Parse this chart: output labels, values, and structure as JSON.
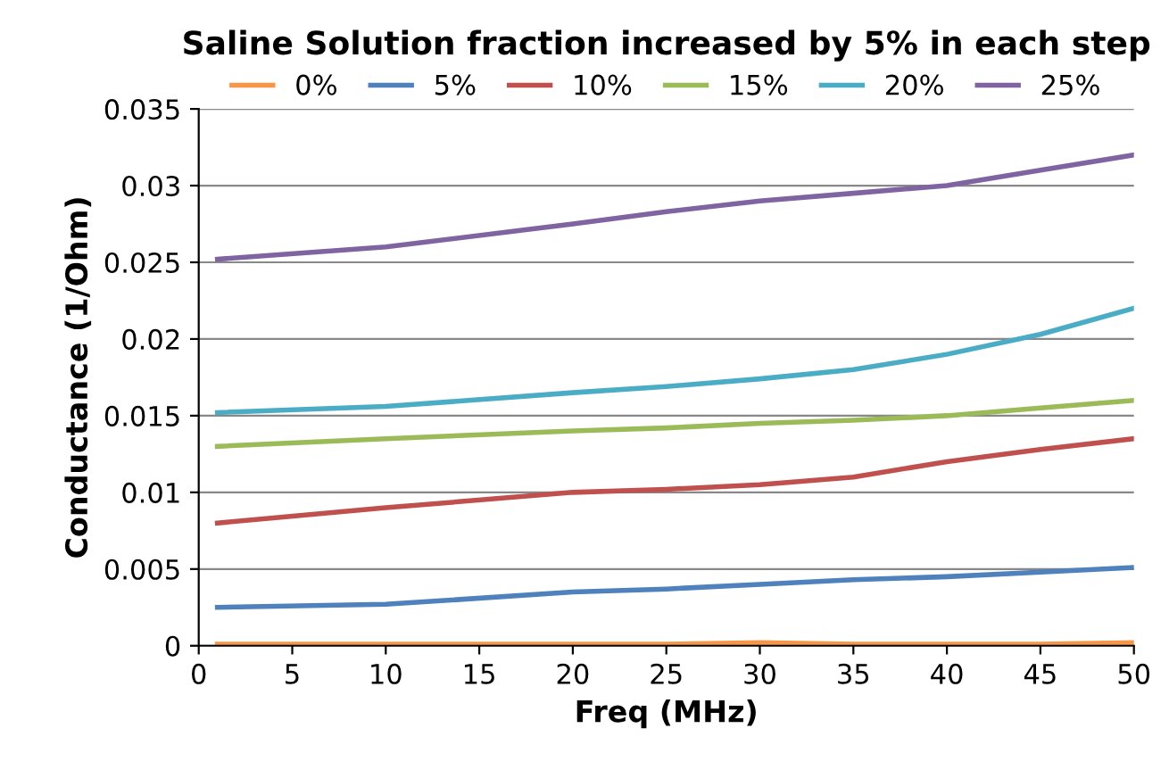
{
  "chart_data": {
    "type": "line",
    "title": "Saline Solution fraction increased by 5% in each step",
    "xlabel": "Freq (MHz)",
    "ylabel": "Conductance (1/Ohm)",
    "xlim": [
      0,
      50
    ],
    "xticks": [
      0,
      5,
      10,
      15,
      20,
      25,
      30,
      35,
      40,
      45,
      50
    ],
    "ylim": [
      0,
      0.035
    ],
    "yticks": [
      0,
      0.005,
      0.01,
      0.015,
      0.02,
      0.025,
      0.03,
      0.035
    ],
    "grid": "y",
    "legend": "top",
    "marker": "none",
    "line_style": "solid",
    "x": [
      1,
      10,
      20,
      25,
      30,
      35,
      40,
      45,
      50
    ],
    "series": [
      {
        "name": "0%",
        "color": "#f79646",
        "values": [
          0.0001,
          0.0001,
          0.0001,
          0.0001,
          0.0002,
          0.0001,
          0.0001,
          0.0001,
          0.0002
        ]
      },
      {
        "name": "5%",
        "color": "#4f81bd",
        "values": [
          0.0025,
          0.0027,
          0.0035,
          0.0037,
          0.004,
          0.0043,
          0.0045,
          0.0048,
          0.0051
        ]
      },
      {
        "name": "10%",
        "color": "#c0504d",
        "values": [
          0.008,
          0.009,
          0.01,
          0.0102,
          0.0105,
          0.011,
          0.012,
          0.0128,
          0.0135
        ]
      },
      {
        "name": "15%",
        "color": "#9bbb59",
        "values": [
          0.013,
          0.0135,
          0.014,
          0.0142,
          0.0145,
          0.0147,
          0.015,
          0.0155,
          0.016
        ]
      },
      {
        "name": "20%",
        "color": "#4bacc6",
        "values": [
          0.0152,
          0.0156,
          0.0165,
          0.0169,
          0.0174,
          0.018,
          0.019,
          0.0203,
          0.022
        ]
      },
      {
        "name": "25%",
        "color": "#8064a2",
        "values": [
          0.0252,
          0.026,
          0.0275,
          0.0283,
          0.029,
          0.0295,
          0.03,
          0.031,
          0.032
        ]
      }
    ]
  }
}
